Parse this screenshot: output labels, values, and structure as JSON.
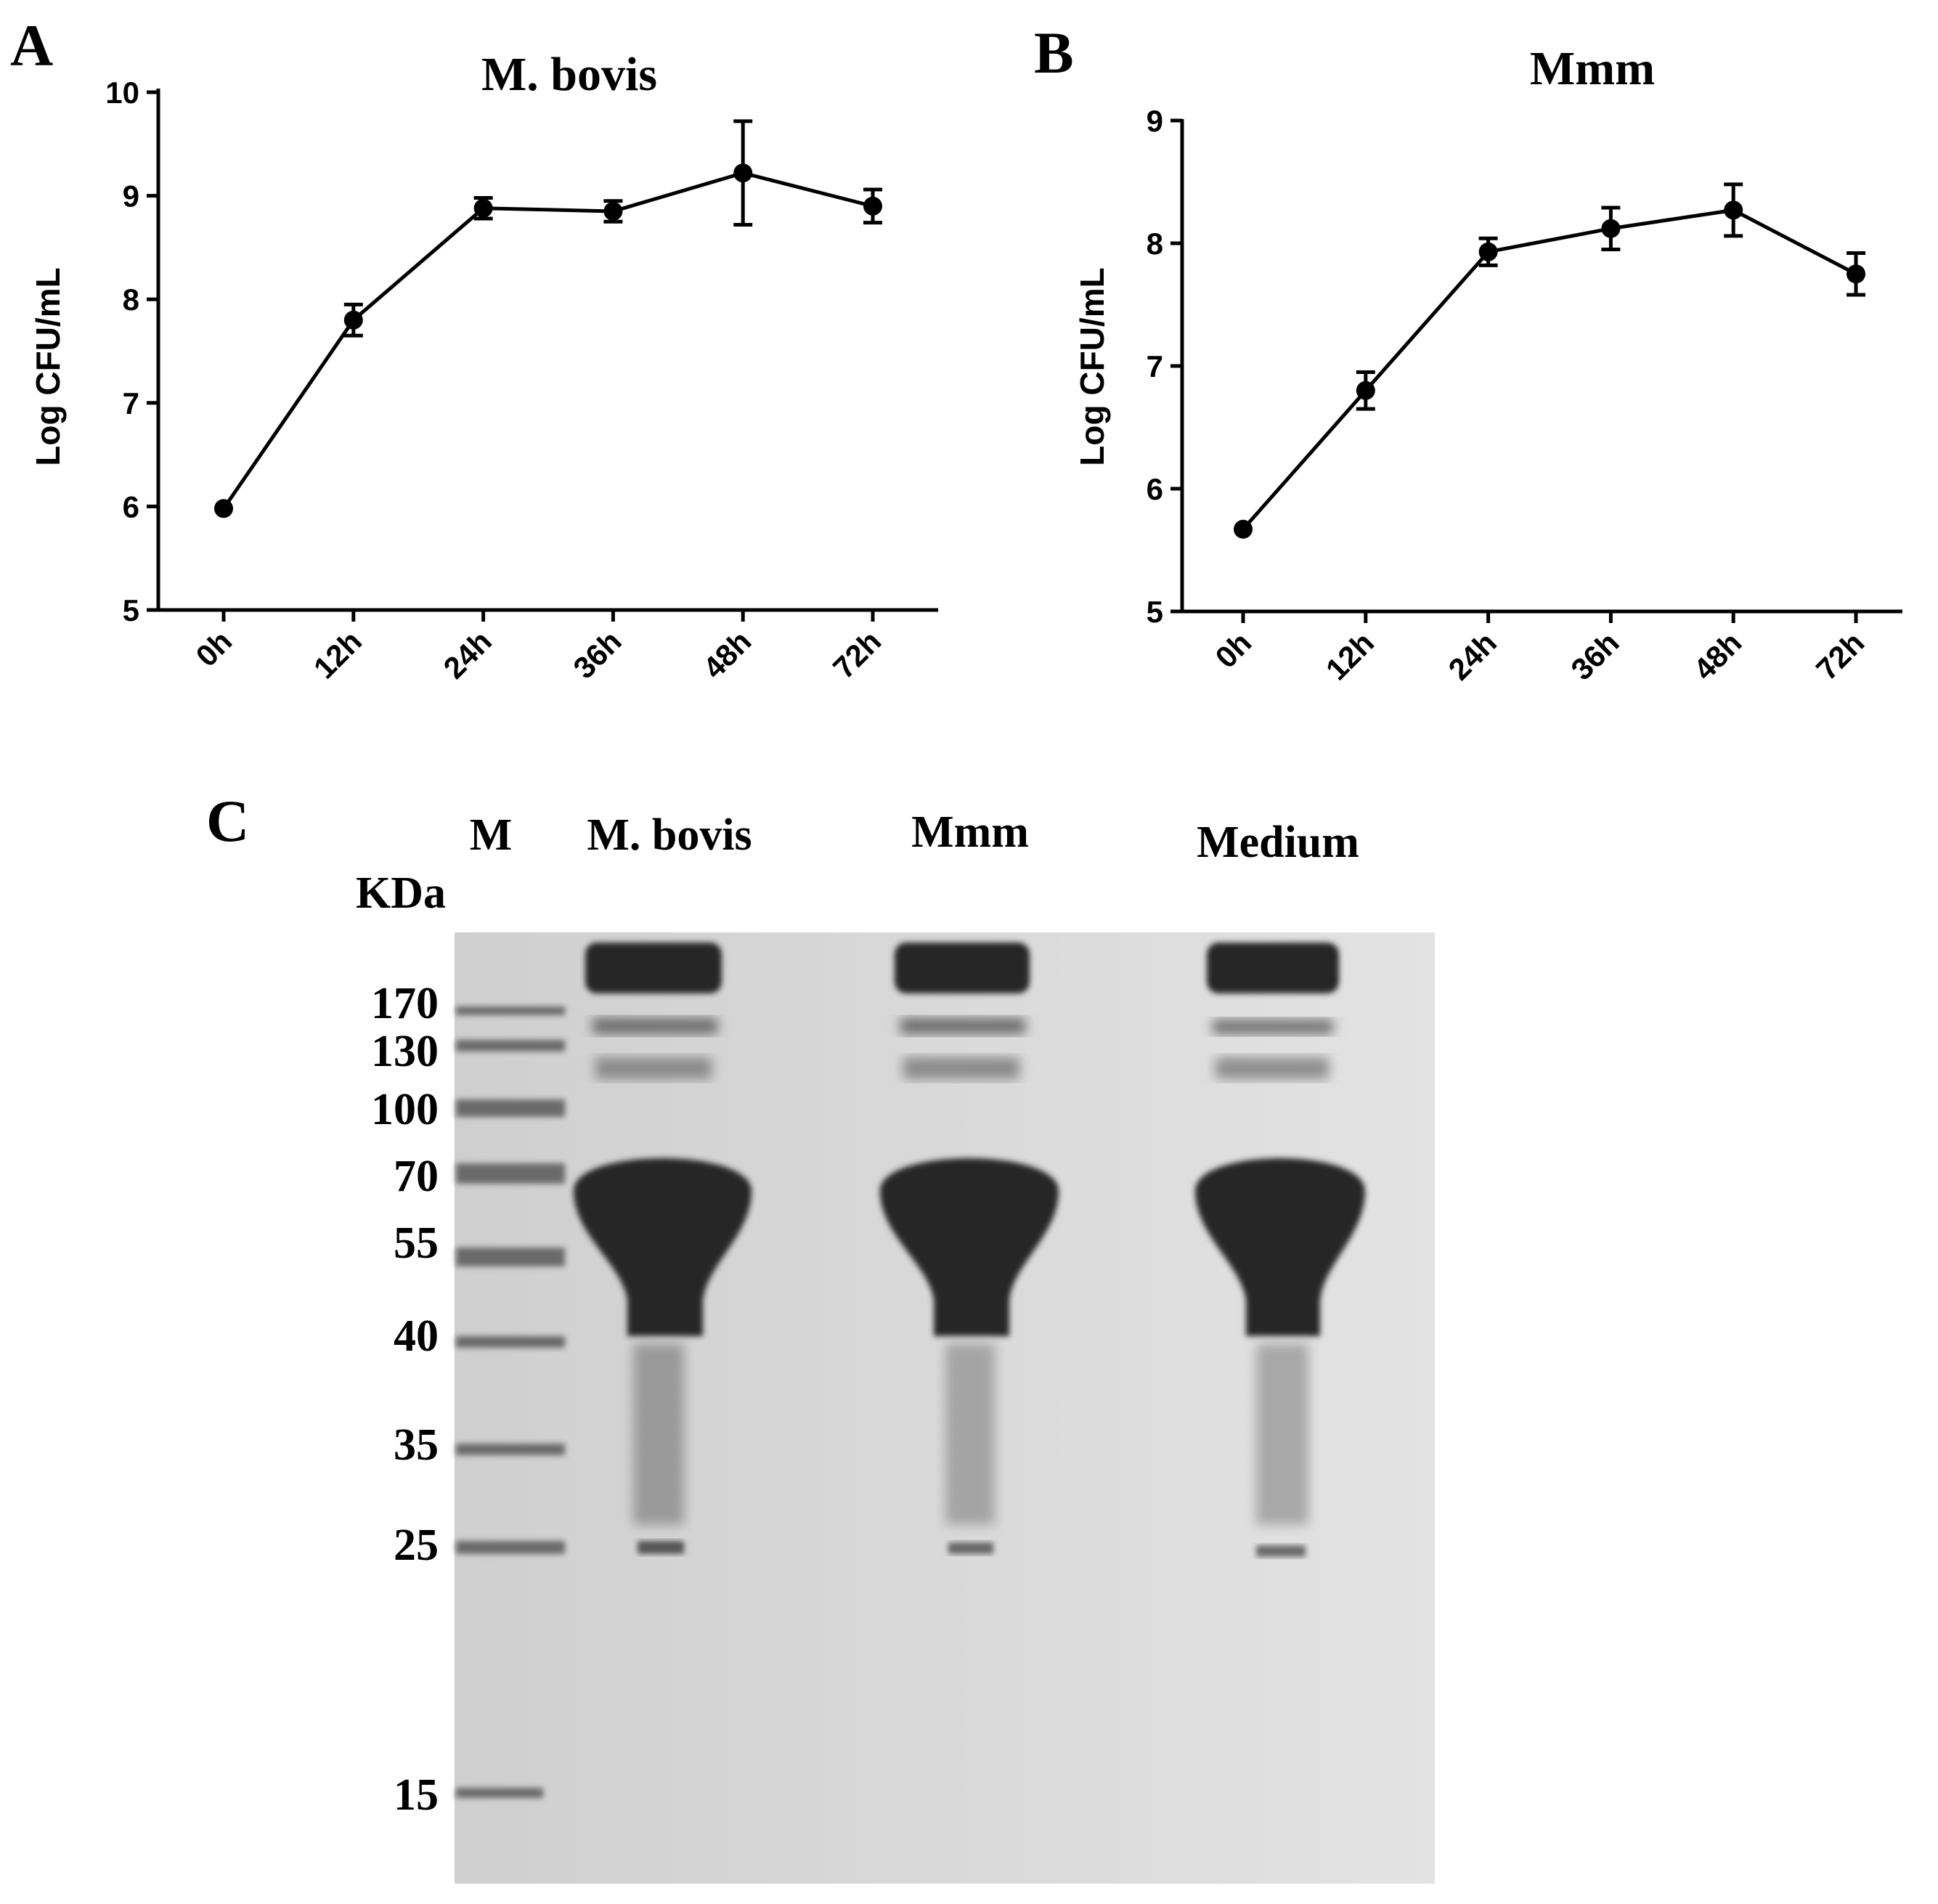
{
  "chart_data": [
    {
      "panel": "A",
      "type": "line",
      "title": "M. bovis",
      "xlabel": "",
      "ylabel": "Log CFU/mL",
      "categories": [
        "0h",
        "12h",
        "24h",
        "36h",
        "48h",
        "72h"
      ],
      "values": [
        5.98,
        7.8,
        8.88,
        8.85,
        9.22,
        8.9
      ],
      "errors": [
        0.03,
        0.15,
        0.1,
        0.1,
        0.5,
        0.16
      ],
      "ylim": [
        5,
        10
      ],
      "yticks": [
        "5",
        "6",
        "7",
        "8",
        "9",
        "10"
      ],
      "grid": false
    },
    {
      "panel": "B",
      "type": "line",
      "title": "Mmm",
      "xlabel": "",
      "ylabel": "Log CFU/mL",
      "categories": [
        "0h",
        "12h",
        "24h",
        "36h",
        "48h",
        "72h"
      ],
      "values": [
        5.67,
        6.8,
        7.93,
        8.12,
        8.27,
        7.75
      ],
      "errors": [
        0.03,
        0.15,
        0.11,
        0.17,
        0.21,
        0.17
      ],
      "ylim": [
        5,
        9
      ],
      "yticks": [
        "5",
        "6",
        "7",
        "8",
        "9"
      ],
      "grid": false
    }
  ],
  "gel": {
    "panel": "C",
    "unit_label": "KDa",
    "marker_label": "M",
    "lanes": [
      "M. bovis",
      "Mmm",
      "Medium"
    ],
    "markers": [
      "170",
      "130",
      "100",
      "70",
      "55",
      "40",
      "35",
      "25",
      "15"
    ]
  },
  "colors": {
    "line": "#000000",
    "gel_background": "#d6d6d6",
    "band": "#2e2e2e"
  }
}
